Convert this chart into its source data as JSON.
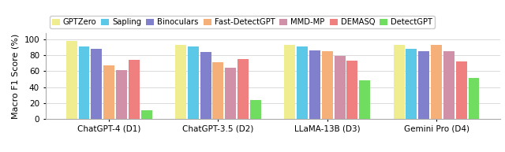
{
  "categories": [
    "ChatGPT-4 (D1)",
    "ChatGPT-3.5 (D2)",
    "LLaMA-13B (D3)",
    "Gemini Pro (D4)"
  ],
  "series": [
    {
      "label": "GPTZero",
      "color": "#f0ed90",
      "values": [
        98,
        93,
        93,
        93
      ]
    },
    {
      "label": "Sapling",
      "color": "#5bc8e8",
      "values": [
        91,
        91,
        91,
        88
      ]
    },
    {
      "label": "Binoculars",
      "color": "#8080cc",
      "values": [
        88,
        84,
        86,
        85
      ]
    },
    {
      "label": "Fast-DetectGPT",
      "color": "#f5b07a",
      "values": [
        67,
        71,
        85,
        93
      ]
    },
    {
      "label": "MMD-MP",
      "color": "#d090a8",
      "values": [
        61,
        64,
        79,
        85
      ]
    },
    {
      "label": "DEMASQ",
      "color": "#f08080",
      "values": [
        74,
        75,
        73,
        72
      ]
    },
    {
      "label": "DetectGPT",
      "color": "#70dd60",
      "values": [
        11,
        24,
        49,
        52
      ]
    }
  ],
  "ylabel": "Macro F1 Score (%)",
  "ylim": [
    0,
    108
  ],
  "yticks": [
    0,
    20,
    40,
    60,
    80,
    100
  ],
  "legend_fontsize": 7.2,
  "tick_fontsize": 7.5,
  "xlabel_fontsize": 8.0,
  "ylabel_fontsize": 8.0,
  "background_color": "#ffffff",
  "grid_color": "#cccccc",
  "bar_gap": 0.88
}
